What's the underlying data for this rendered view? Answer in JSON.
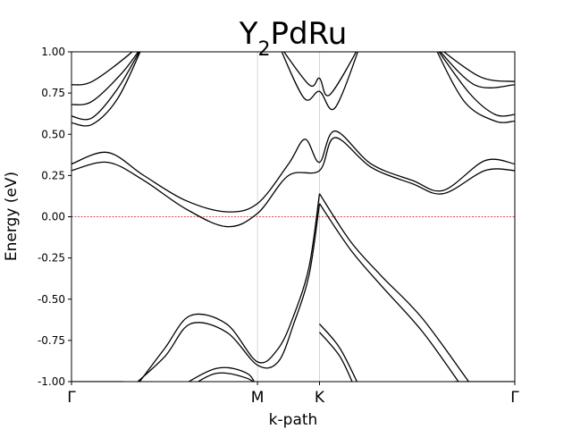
{
  "chart_data": {
    "type": "line",
    "title": "Y2PdRu",
    "title_parts": {
      "base1": "Y",
      "sub": "2",
      "base2": "PdRu"
    },
    "xlabel": "k-path",
    "ylabel": "Energy (eV)",
    "ylim": [
      -1.0,
      1.0
    ],
    "xlim": [
      0,
      4.29
    ],
    "y_ticks": [
      "-1.00",
      "-0.75",
      "-0.50",
      "-0.25",
      "0.00",
      "0.25",
      "0.50",
      "0.75",
      "1.00"
    ],
    "y_tick_values": [
      -1.0,
      -0.75,
      -0.5,
      -0.25,
      0.0,
      0.25,
      0.5,
      0.75,
      1.0
    ],
    "high_symmetry_points": [
      {
        "label": "Γ",
        "x": 0
      },
      {
        "label": "M",
        "x": 1.8
      },
      {
        "label": "K",
        "x": 2.4
      },
      {
        "label": "Γ",
        "x": 4.29
      }
    ],
    "fermi_level": 0.0,
    "colors": {
      "bands": "#000000",
      "fermi": "#ff0000",
      "vlines": "#cccccc"
    },
    "grid": false,
    "series": [
      {
        "values": [
          [
            0,
            0.28
          ],
          [
            0.35,
            0.33
          ],
          [
            0.7,
            0.22
          ],
          [
            1.1,
            0.05
          ],
          [
            1.5,
            -0.06
          ],
          [
            1.8,
            0.02
          ],
          [
            2.1,
            0.25
          ],
          [
            2.4,
            0.28
          ],
          [
            2.55,
            0.48
          ],
          [
            2.9,
            0.3
          ],
          [
            3.3,
            0.2
          ],
          [
            3.6,
            0.14
          ],
          [
            4.0,
            0.28
          ],
          [
            4.29,
            0.28
          ]
        ]
      },
      {
        "values": [
          [
            0,
            0.32
          ],
          [
            0.35,
            0.39
          ],
          [
            0.7,
            0.25
          ],
          [
            1.1,
            0.1
          ],
          [
            1.5,
            0.03
          ],
          [
            1.8,
            0.08
          ],
          [
            2.1,
            0.32
          ],
          [
            2.26,
            0.47
          ],
          [
            2.4,
            0.33
          ],
          [
            2.55,
            0.52
          ],
          [
            2.9,
            0.32
          ],
          [
            3.3,
            0.22
          ],
          [
            3.6,
            0.16
          ],
          [
            4.0,
            0.34
          ],
          [
            4.29,
            0.32
          ]
        ]
      },
      {
        "values": [
          [
            0,
            0.57
          ],
          [
            0.2,
            0.56
          ],
          [
            0.45,
            0.72
          ],
          [
            0.7,
            1.05
          ]
        ]
      },
      {
        "values": [
          [
            0,
            0.61
          ],
          [
            0.2,
            0.6
          ],
          [
            0.45,
            0.78
          ],
          [
            0.7,
            1.05
          ]
        ]
      },
      {
        "values": [
          [
            0,
            0.68
          ],
          [
            0.2,
            0.7
          ],
          [
            0.5,
            0.88
          ],
          [
            0.7,
            1.05
          ]
        ]
      },
      {
        "values": [
          [
            0,
            0.8
          ],
          [
            0.2,
            0.82
          ],
          [
            0.55,
            0.98
          ],
          [
            0.65,
            1.05
          ]
        ]
      },
      {
        "values": [
          [
            3.5,
            1.05
          ],
          [
            3.8,
            0.7
          ],
          [
            4.1,
            0.58
          ],
          [
            4.29,
            0.58
          ]
        ]
      },
      {
        "values": [
          [
            3.5,
            1.05
          ],
          [
            3.85,
            0.75
          ],
          [
            4.1,
            0.62
          ],
          [
            4.29,
            0.62
          ]
        ]
      },
      {
        "values": [
          [
            3.5,
            1.05
          ],
          [
            3.9,
            0.8
          ],
          [
            4.29,
            0.8
          ]
        ]
      },
      {
        "values": [
          [
            3.5,
            1.05
          ],
          [
            3.95,
            0.85
          ],
          [
            4.29,
            0.82
          ]
        ]
      },
      {
        "values": [
          [
            2.0,
            1.05
          ],
          [
            2.25,
            0.72
          ],
          [
            2.4,
            0.76
          ],
          [
            2.55,
            0.66
          ],
          [
            2.8,
            1.05
          ]
        ]
      },
      {
        "values": [
          [
            2.0,
            1.05
          ],
          [
            2.3,
            0.8
          ],
          [
            2.4,
            0.84
          ],
          [
            2.5,
            0.74
          ],
          [
            2.8,
            1.05
          ]
        ]
      },
      {
        "values": [
          [
            2.4,
            0.08
          ],
          [
            2.7,
            -0.2
          ],
          [
            3.0,
            -0.42
          ],
          [
            3.4,
            -0.7
          ],
          [
            3.8,
            -1.05
          ]
        ]
      },
      {
        "values": [
          [
            2.4,
            0.14
          ],
          [
            2.7,
            -0.15
          ],
          [
            3.0,
            -0.36
          ],
          [
            3.4,
            -0.62
          ],
          [
            3.9,
            -1.05
          ]
        ]
      },
      {
        "values": [
          [
            2.4,
            0.14
          ],
          [
            2.3,
            -0.3
          ],
          [
            2.15,
            -0.6
          ],
          [
            2.0,
            -0.8
          ],
          [
            1.8,
            -0.88
          ],
          [
            1.5,
            -0.65
          ],
          [
            1.15,
            -0.6
          ],
          [
            0.9,
            -0.8
          ],
          [
            0.6,
            -1.05
          ]
        ]
      },
      {
        "values": [
          [
            2.4,
            0.08
          ],
          [
            2.3,
            -0.35
          ],
          [
            2.15,
            -0.65
          ],
          [
            2.0,
            -0.88
          ],
          [
            1.8,
            -0.9
          ],
          [
            1.5,
            -0.7
          ],
          [
            1.15,
            -0.65
          ],
          [
            0.9,
            -0.85
          ],
          [
            0.55,
            -1.05
          ]
        ]
      },
      {
        "values": [
          [
            0,
            -1.0
          ],
          [
            0.5,
            -1.0
          ]
        ]
      },
      {
        "values": [
          [
            2.4,
            -0.65
          ],
          [
            2.6,
            -0.8
          ],
          [
            2.8,
            -1.05
          ]
        ]
      },
      {
        "values": [
          [
            2.4,
            -0.7
          ],
          [
            2.6,
            -0.85
          ],
          [
            2.75,
            -1.05
          ]
        ]
      },
      {
        "values": [
          [
            1.0,
            -1.05
          ],
          [
            1.4,
            -0.92
          ],
          [
            1.7,
            -0.95
          ],
          [
            1.8,
            -1.05
          ]
        ]
      },
      {
        "values": [
          [
            1.1,
            -1.05
          ],
          [
            1.4,
            -0.95
          ],
          [
            1.7,
            -0.98
          ],
          [
            1.85,
            -1.05
          ]
        ]
      },
      {
        "values": [
          [
            3.7,
            -1.0
          ],
          [
            4.29,
            -1.0
          ]
        ]
      }
    ]
  }
}
